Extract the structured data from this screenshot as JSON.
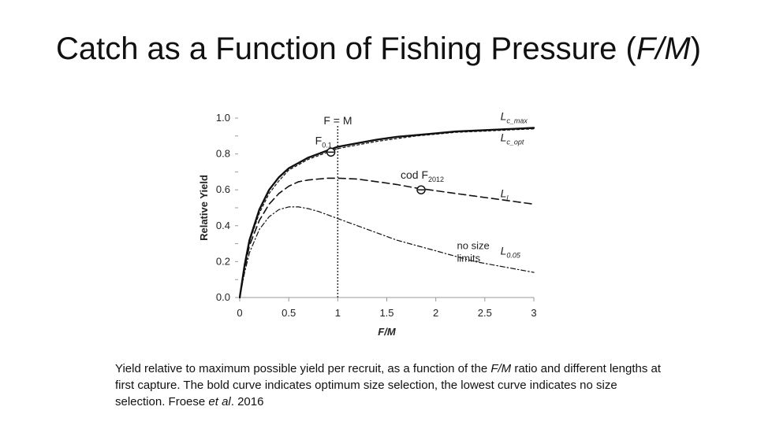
{
  "slide": {
    "title_main": "Catch as a Function of Fishing Pressure (",
    "title_italic": "F/M",
    "title_end": ")"
  },
  "caption": {
    "part1": "Yield relative to maximum possible yield per recruit, as a function of the ",
    "italic1": "F/M",
    "part2": " ratio and different lengths at first capture. The bold curve indicates optimum size selection, the lowest curve indicates no size selection. Froese ",
    "italic2": "et al",
    "part3": ". 2016"
  },
  "chart_data": {
    "type": "line",
    "xlabel": "F/M",
    "ylabel": "Relative Yield",
    "xlim": [
      0,
      3
    ],
    "ylim": [
      0,
      1.0
    ],
    "x_ticks": [
      "0",
      "0.5",
      "1",
      "1.5",
      "2",
      "2.5",
      "3"
    ],
    "y_ticks": [
      "0.0",
      "0.2",
      "0.4",
      "0.6",
      "0.8",
      "1.0"
    ],
    "series": [
      {
        "name": "Lc_max",
        "style": "solid",
        "x": [
          0,
          0.05,
          0.1,
          0.2,
          0.3,
          0.4,
          0.5,
          0.6,
          0.7,
          0.8,
          0.9,
          1.0,
          1.2,
          1.4,
          1.6,
          1.8,
          2.0,
          2.2,
          2.4,
          2.6,
          2.8,
          3.0
        ],
        "y": [
          0,
          0.18,
          0.32,
          0.49,
          0.6,
          0.67,
          0.72,
          0.75,
          0.78,
          0.8,
          0.82,
          0.84,
          0.86,
          0.88,
          0.895,
          0.905,
          0.915,
          0.925,
          0.93,
          0.935,
          0.94,
          0.945
        ]
      },
      {
        "name": "Lc_opt",
        "style": "dashed",
        "x": [
          0,
          0.05,
          0.1,
          0.2,
          0.3,
          0.4,
          0.5,
          0.6,
          0.7,
          0.8,
          0.9,
          1.0,
          1.2,
          1.4,
          1.6,
          1.8,
          2.0,
          2.2,
          2.4,
          2.6,
          2.8,
          3.0
        ],
        "y": [
          0,
          0.17,
          0.31,
          0.47,
          0.58,
          0.65,
          0.71,
          0.74,
          0.77,
          0.79,
          0.81,
          0.83,
          0.85,
          0.87,
          0.885,
          0.9,
          0.91,
          0.92,
          0.925,
          0.93,
          0.935,
          0.94
        ]
      },
      {
        "name": "Ll",
        "style": "long-dash",
        "x": [
          0,
          0.05,
          0.1,
          0.2,
          0.3,
          0.4,
          0.5,
          0.6,
          0.7,
          0.8,
          0.9,
          1.0,
          1.2,
          1.4,
          1.6,
          1.8,
          2.0,
          2.2,
          2.4,
          2.6,
          2.8,
          3.0
        ],
        "y": [
          0,
          0.16,
          0.29,
          0.43,
          0.52,
          0.58,
          0.62,
          0.645,
          0.655,
          0.66,
          0.665,
          0.665,
          0.66,
          0.645,
          0.63,
          0.61,
          0.595,
          0.58,
          0.565,
          0.55,
          0.535,
          0.52
        ]
      },
      {
        "name": "L0.05",
        "style": "dash-dot",
        "x": [
          0,
          0.05,
          0.1,
          0.2,
          0.3,
          0.4,
          0.5,
          0.6,
          0.7,
          0.8,
          0.9,
          1.0,
          1.2,
          1.4,
          1.6,
          1.8,
          2.0,
          2.2,
          2.4,
          2.6,
          2.8,
          3.0
        ],
        "y": [
          0,
          0.14,
          0.25,
          0.38,
          0.45,
          0.49,
          0.505,
          0.505,
          0.495,
          0.48,
          0.46,
          0.44,
          0.4,
          0.36,
          0.32,
          0.29,
          0.26,
          0.23,
          0.2,
          0.18,
          0.16,
          0.14
        ]
      }
    ],
    "vline": {
      "x": 1,
      "label": "F = M"
    },
    "markers": [
      {
        "label_main": "F",
        "label_sub": "0.1",
        "x": 0.93,
        "y": 0.81
      },
      {
        "label_main": "cod F",
        "label_sub": "2012",
        "x": 1.85,
        "y": 0.6
      }
    ],
    "curve_labels": [
      {
        "main": "L",
        "sub": "c_max",
        "x": 2.82,
        "y": 0.99
      },
      {
        "main": "L",
        "sub": "c_opt",
        "x": 2.82,
        "y": 0.87
      },
      {
        "main": "L",
        "sub": "l",
        "x": 2.82,
        "y": 0.56
      },
      {
        "main": "L",
        "sub": "0.05",
        "x": 2.82,
        "y": 0.24
      }
    ],
    "annotation": {
      "line1": "no size",
      "line2": "limits",
      "x": 2.2,
      "y": 0.27
    }
  }
}
